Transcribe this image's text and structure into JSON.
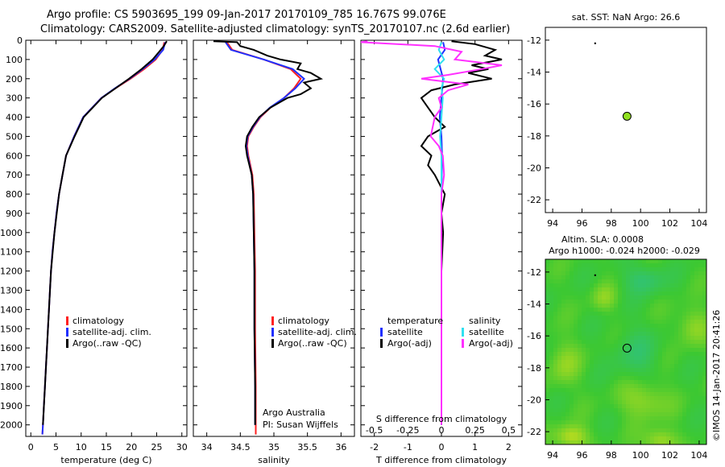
{
  "header": {
    "title_line1": "Argo profile: CS 5903695_199 09-Jan-2017 20170109_785 16.767S 99.076E",
    "title_line2": "Climatology: CARS2009. Satellite-adjusted climatology: synTS_20170107.nc (2.6d earlier)"
  },
  "colors": {
    "climatology": "#ff2020",
    "satellite": "#2030ff",
    "argo": "#000000",
    "salinity_satellite": "#30e0f0",
    "salinity_argo": "#ff30ff",
    "float_marker": "#90e020"
  },
  "chart_data": [
    {
      "type": "line",
      "name": "temperature-profile",
      "xlabel": "temperature (deg C)",
      "ylabel": "",
      "xlim": [
        -1,
        31
      ],
      "ylim": [
        2060,
        0
      ],
      "x_ticks": [
        "0",
        "5",
        "10",
        "15",
        "20",
        "25",
        "30"
      ],
      "y_ticks": [
        "0",
        "100",
        "200",
        "300",
        "400",
        "500",
        "600",
        "700",
        "800",
        "900",
        "1000",
        "1100",
        "1200",
        "1300",
        "1400",
        "1500",
        "1600",
        "1700",
        "1800",
        "1900",
        "2000"
      ],
      "legend": [
        "climatology",
        "satellite-adj. clim.",
        "Argo(..raw -QC)"
      ],
      "series": [
        {
          "name": "climatology",
          "color": "#ff2020",
          "depth": [
            10,
            50,
            100,
            150,
            200,
            250,
            300,
            400,
            500,
            600,
            700,
            800,
            900,
            1000,
            1100,
            1200,
            1300,
            1400,
            1500,
            1600,
            1700,
            1800,
            1900,
            2000,
            2050
          ],
          "values": [
            26.5,
            26.2,
            24.8,
            22.5,
            19.8,
            16.8,
            14.0,
            10.4,
            8.6,
            7.0,
            6.3,
            5.6,
            5.1,
            4.7,
            4.3,
            4.0,
            3.8,
            3.6,
            3.4,
            3.2,
            3.0,
            2.8,
            2.6,
            2.4,
            2.3
          ]
        },
        {
          "name": "satellite-adj. clim.",
          "color": "#2030ff",
          "depth": [
            10,
            50,
            100,
            150,
            200,
            250,
            300,
            400,
            500,
            600,
            700,
            800,
            900,
            1000,
            1100,
            1200,
            1300,
            1400,
            1500,
            1600,
            1700,
            1800,
            1900,
            2000,
            2050
          ],
          "values": [
            26.7,
            26.3,
            24.6,
            22.2,
            19.6,
            16.7,
            14.0,
            10.4,
            8.6,
            7.0,
            6.3,
            5.6,
            5.1,
            4.7,
            4.3,
            4.0,
            3.8,
            3.6,
            3.4,
            3.2,
            3.0,
            2.8,
            2.6,
            2.4,
            2.3
          ]
        },
        {
          "name": "Argo(..raw -QC)",
          "color": "#000000",
          "depth": [
            5,
            30,
            60,
            100,
            150,
            200,
            250,
            300,
            400,
            500,
            600,
            700,
            800,
            1000,
            1200,
            1400,
            1600,
            1800,
            2000
          ],
          "values": [
            27.0,
            26.4,
            25.5,
            24.2,
            22.0,
            19.5,
            16.8,
            14.1,
            10.5,
            8.7,
            7.0,
            6.3,
            5.6,
            4.7,
            4.0,
            3.6,
            3.2,
            2.8,
            2.4
          ]
        }
      ]
    },
    {
      "type": "line",
      "name": "salinity-profile",
      "xlabel": "salinity",
      "xlim": [
        33.8,
        36.2
      ],
      "ylim": [
        2060,
        0
      ],
      "x_ticks": [
        "34",
        "34.5",
        "35",
        "35.5",
        "36"
      ],
      "legend": [
        "climatology",
        "satellite-adj. clim.",
        "Argo(..raw -QC)"
      ],
      "annotation_line1": "Argo Australia",
      "annotation_line2": "PI: Susan Wijffels",
      "series": [
        {
          "name": "climatology",
          "color": "#ff2020",
          "depth": [
            10,
            50,
            100,
            150,
            200,
            250,
            300,
            350,
            400,
            450,
            500,
            550,
            600,
            700,
            800,
            1000,
            1200,
            1500,
            1800,
            2000,
            2050
          ],
          "values": [
            34.3,
            34.38,
            34.85,
            35.25,
            35.4,
            35.3,
            35.15,
            34.95,
            34.8,
            34.7,
            34.62,
            34.6,
            34.62,
            34.68,
            34.7,
            34.71,
            34.72,
            34.72,
            34.73,
            34.73,
            34.73
          ]
        },
        {
          "name": "satellite-adj. clim.",
          "color": "#2030ff",
          "depth": [
            10,
            50,
            100,
            150,
            200,
            250,
            300,
            350,
            400,
            450,
            500,
            550,
            600,
            700,
            800,
            1000,
            1200,
            1500,
            1800,
            2000
          ],
          "values": [
            34.28,
            34.36,
            34.85,
            35.28,
            35.45,
            35.32,
            35.15,
            34.94,
            34.79,
            34.69,
            34.61,
            34.59,
            34.61,
            34.67,
            34.69,
            34.7,
            34.71,
            34.71,
            34.72,
            34.72
          ]
        },
        {
          "name": "Argo(..raw -QC)",
          "color": "#000000",
          "depth": [
            5,
            10,
            30,
            50,
            80,
            100,
            120,
            150,
            170,
            200,
            220,
            250,
            280,
            300,
            350,
            400,
            450,
            500,
            550,
            600,
            700,
            800,
            1000,
            1200,
            1500,
            1800,
            2000
          ],
          "values": [
            34.1,
            34.45,
            34.5,
            34.7,
            34.9,
            35.1,
            35.4,
            35.35,
            35.55,
            35.7,
            35.45,
            35.55,
            35.4,
            35.2,
            34.95,
            34.78,
            34.68,
            34.6,
            34.58,
            34.6,
            34.67,
            34.69,
            34.7,
            34.71,
            34.71,
            34.72,
            34.72
          ]
        }
      ]
    },
    {
      "type": "line",
      "name": "difference-profile",
      "xlabel": "T difference from climatology",
      "top_axis_label": "S difference from climatology",
      "xlim": [
        -2.4,
        2.4
      ],
      "ylim": [
        2060,
        0
      ],
      "x_ticks": [
        "-2",
        "-1",
        "0",
        "1",
        "2"
      ],
      "top_ticks": [
        "-0.5",
        "-0.25",
        "0",
        "0.25",
        "0.5"
      ],
      "legend_temperature_title": "temperature",
      "legend_salinity_title": "salinity",
      "legend": [
        "satellite",
        "Argo(-adj)",
        "satellite",
        "Argo(-adj)"
      ],
      "series": [
        {
          "name": "temperature satellite",
          "color": "#2030ff",
          "depth": [
            10,
            50,
            100,
            200,
            300,
            400,
            500,
            600,
            800,
            1000,
            1500,
            2000
          ],
          "values": [
            0.05,
            0.1,
            -0.1,
            0.05,
            0.0,
            -0.05,
            0.0,
            0.02,
            0.0,
            0.0,
            0.0,
            0.0
          ]
        },
        {
          "name": "temperature Argo(-adj)",
          "color": "#000000",
          "depth": [
            5,
            20,
            50,
            80,
            100,
            130,
            150,
            170,
            200,
            230,
            260,
            300,
            350,
            400,
            450,
            500,
            550,
            600,
            650,
            700,
            800,
            900,
            1000,
            1200,
            1500,
            1800,
            2000
          ],
          "values": [
            0.3,
            1.0,
            1.6,
            1.3,
            1.8,
            0.9,
            1.4,
            0.8,
            1.5,
            0.4,
            -0.3,
            -0.6,
            -0.4,
            -0.2,
            0.1,
            -0.4,
            -0.6,
            -0.3,
            -0.4,
            -0.2,
            0.1,
            0.0,
            0.05,
            0.0,
            0.0,
            0.0,
            0.0
          ]
        },
        {
          "name": "salinity satellite",
          "color": "#30e0f0",
          "depth": [
            10,
            50,
            100,
            150,
            200,
            250,
            300,
            400,
            500,
            600,
            800,
            1000,
            1500,
            2000
          ],
          "values": [
            0.0,
            -0.02,
            0.02,
            -0.05,
            0.02,
            0.0,
            0.01,
            0.0,
            -0.01,
            0.0,
            0.0,
            0.0,
            0.0,
            0.0
          ]
        },
        {
          "name": "salinity Argo(-adj)",
          "color": "#ff30ff",
          "depth": [
            5,
            10,
            30,
            60,
            100,
            130,
            150,
            180,
            200,
            230,
            260,
            300,
            350,
            400,
            500,
            550,
            600,
            700,
            800,
            1000,
            1500,
            2000
          ],
          "values": [
            -0.55,
            -0.6,
            -0.05,
            0.15,
            0.1,
            0.45,
            0.3,
            0.05,
            -0.15,
            0.2,
            0.05,
            -0.02,
            0.0,
            -0.05,
            -0.08,
            -0.02,
            0.01,
            0.02,
            0.0,
            0.0,
            0.0,
            0.0
          ]
        }
      ]
    },
    {
      "type": "scatter",
      "name": "sst-map",
      "title": "sat. SST: NaN Argo: 26.6",
      "xlim": [
        93.5,
        104.5
      ],
      "ylim": [
        -22.8,
        -11.2
      ],
      "x_ticks": [
        "94",
        "96",
        "98",
        "100",
        "102",
        "104"
      ],
      "y_ticks": [
        "-12",
        "-14",
        "-16",
        "-18",
        "-20",
        "-22"
      ],
      "float_position": {
        "lon": 99.076,
        "lat": -16.767
      },
      "track_points": [
        {
          "lon": 96.9,
          "lat": -12.2
        }
      ]
    },
    {
      "type": "heatmap",
      "name": "sla-map",
      "title_line1": "Altim. SLA: 0.0008",
      "title_line2": "Argo h1000: -0.024 h2000: -0.029",
      "xlim": [
        93.5,
        104.5
      ],
      "ylim": [
        -22.8,
        -11.2
      ],
      "x_ticks": [
        "94",
        "96",
        "98",
        "100",
        "102",
        "104"
      ],
      "y_ticks": [
        "-12",
        "-14",
        "-16",
        "-18",
        "-20",
        "-22"
      ],
      "float_position": {
        "lon": 99.076,
        "lat": -16.767
      },
      "track_points": [
        {
          "lon": 96.9,
          "lat": -12.2
        }
      ]
    }
  ],
  "watermark": "©IMOS 14-Jan-2017 20:41:26"
}
